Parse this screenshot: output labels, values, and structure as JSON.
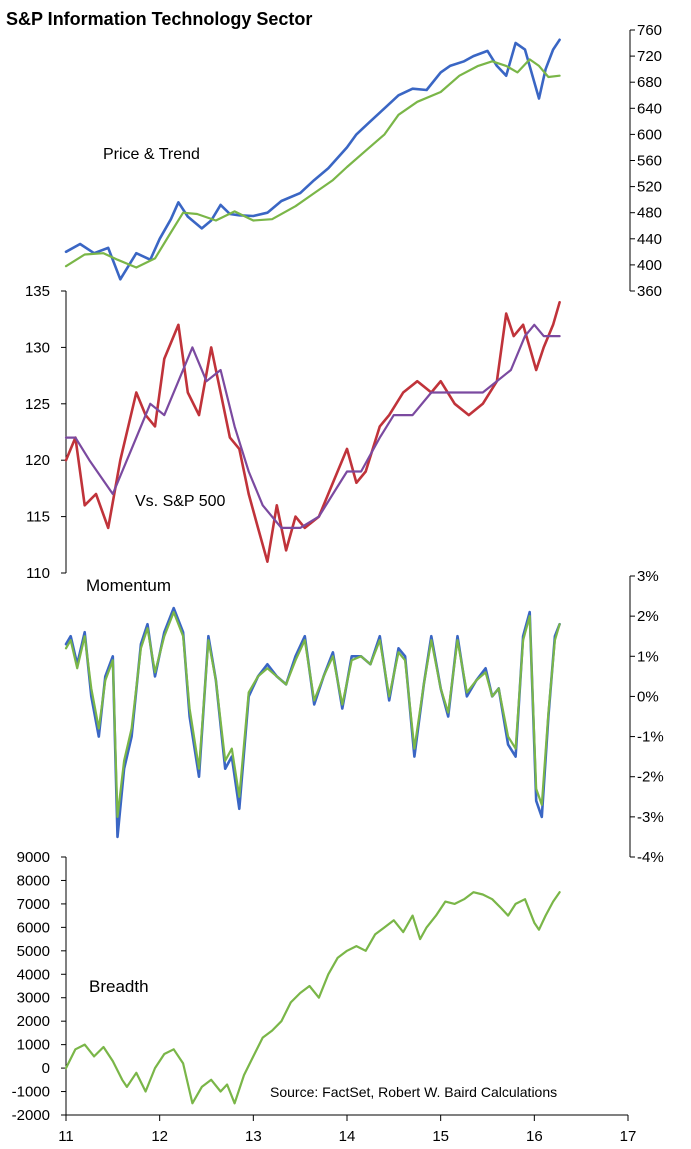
{
  "chart_data": {
    "type": "line",
    "title": "S&P Information Technology Sector",
    "source": "Source: FactSet, Robert W. Baird Calculations",
    "x_axis": {
      "ticks": [
        "11",
        "12",
        "13",
        "14",
        "15",
        "16",
        "17"
      ],
      "range": [
        2011,
        2017
      ]
    },
    "panels": [
      {
        "name": "Price & Trend",
        "axis_side": "right",
        "ylim": [
          360,
          760
        ],
        "y_ticks": [
          "760",
          "720",
          "680",
          "640",
          "600",
          "560",
          "520",
          "480",
          "440",
          "400",
          "360"
        ],
        "series": [
          {
            "color": "#3a66c4",
            "x": [
              2011.0,
              2011.15,
              2011.3,
              2011.45,
              2011.58,
              2011.75,
              2011.9,
              2012.0,
              2012.12,
              2012.2,
              2012.3,
              2012.45,
              2012.55,
              2012.65,
              2012.75,
              2012.85,
              2013.0,
              2013.15,
              2013.3,
              2013.5,
              2013.65,
              2013.8,
              2014.0,
              2014.1,
              2014.25,
              2014.4,
              2014.55,
              2014.7,
              2014.85,
              2015.0,
              2015.1,
              2015.25,
              2015.35,
              2015.5,
              2015.6,
              2015.7,
              2015.8,
              2015.9,
              2016.0,
              2016.05,
              2016.12,
              2016.2,
              2016.27
            ],
            "values": [
              420,
              432,
              418,
              426,
              378,
              418,
              408,
              440,
              470,
              496,
              474,
              456,
              468,
              492,
              478,
              476,
              475,
              480,
              498,
              510,
              530,
              548,
              580,
              600,
              620,
              640,
              660,
              670,
              668,
              695,
              705,
              712,
              720,
              728,
              705,
              690,
              740,
              730,
              680,
              655,
              700,
              730,
              745
            ]
          },
          {
            "color": "#7ab648",
            "x": [
              2011.0,
              2011.2,
              2011.4,
              2011.55,
              2011.75,
              2011.95,
              2012.1,
              2012.25,
              2012.4,
              2012.6,
              2012.8,
              2013.0,
              2013.2,
              2013.45,
              2013.65,
              2013.85,
              2014.0,
              2014.2,
              2014.4,
              2014.55,
              2014.75,
              2015.0,
              2015.2,
              2015.4,
              2015.55,
              2015.7,
              2015.82,
              2015.95,
              2016.05,
              2016.15,
              2016.27
            ],
            "values": [
              398,
              416,
              418,
              408,
              396,
              410,
              445,
              480,
              478,
              468,
              482,
              468,
              470,
              490,
              510,
              530,
              550,
              575,
              600,
              630,
              650,
              665,
              690,
              705,
              712,
              705,
              695,
              715,
              705,
              688,
              690
            ]
          }
        ]
      },
      {
        "name": "Vs. S&P 500",
        "axis_side": "left",
        "ylim": [
          110,
          135
        ],
        "y_ticks": [
          "135",
          "130",
          "125",
          "120",
          "115",
          "110"
        ],
        "series": [
          {
            "color": "#c0333a",
            "x": [
              2011.0,
              2011.1,
              2011.2,
              2011.32,
              2011.45,
              2011.58,
              2011.75,
              2011.85,
              2011.95,
              2012.05,
              2012.2,
              2012.3,
              2012.42,
              2012.55,
              2012.65,
              2012.75,
              2012.85,
              2012.95,
              2013.05,
              2013.15,
              2013.25,
              2013.35,
              2013.45,
              2013.55,
              2013.7,
              2013.85,
              2014.0,
              2014.1,
              2014.2,
              2014.35,
              2014.45,
              2014.6,
              2014.75,
              2014.9,
              2015.0,
              2015.15,
              2015.3,
              2015.45,
              2015.6,
              2015.7,
              2015.78,
              2015.88,
              2015.95,
              2016.02,
              2016.1,
              2016.2,
              2016.27
            ],
            "values": [
              120,
              122,
              116,
              117,
              114,
              120,
              126,
              124,
              123,
              129,
              132,
              126,
              124,
              130,
              126,
              122,
              121,
              117,
              114,
              111,
              116,
              112,
              115,
              114,
              115,
              118,
              121,
              118,
              119,
              123,
              124,
              126,
              127,
              126,
              127,
              125,
              124,
              125,
              127,
              133,
              131,
              132,
              130,
              128,
              130,
              132,
              134
            ]
          },
          {
            "color": "#7b4aa0",
            "x": [
              2011.0,
              2011.1,
              2011.25,
              2011.5,
              2011.7,
              2011.9,
              2012.05,
              2012.2,
              2012.35,
              2012.5,
              2012.65,
              2012.8,
              2012.95,
              2013.1,
              2013.3,
              2013.5,
              2013.7,
              2013.85,
              2014.0,
              2014.15,
              2014.35,
              2014.5,
              2014.7,
              2014.9,
              2015.05,
              2015.25,
              2015.45,
              2015.6,
              2015.75,
              2015.9,
              2016.0,
              2016.1,
              2016.2,
              2016.27
            ],
            "values": [
              122,
              122,
              120,
              117,
              121,
              125,
              124,
              127,
              130,
              127,
              128,
              123,
              119,
              116,
              114,
              114,
              115,
              117,
              119,
              119,
              122,
              124,
              124,
              126,
              126,
              126,
              126,
              127,
              128,
              131,
              132,
              131,
              131,
              131
            ]
          }
        ]
      },
      {
        "name": "Momentum",
        "axis_side": "right",
        "ylim": [
          -4,
          3
        ],
        "y_ticks": [
          "3%",
          "2%",
          "1%",
          "0%",
          "-1%",
          "-2%",
          "-3%",
          "-4%"
        ],
        "series": [
          {
            "color": "#3a66c4",
            "x": [
              2011.0,
              2011.05,
              2011.12,
              2011.2,
              2011.27,
              2011.35,
              2011.42,
              2011.5,
              2011.55,
              2011.62,
              2011.7,
              2011.8,
              2011.87,
              2011.95,
              2012.05,
              2012.15,
              2012.25,
              2012.32,
              2012.42,
              2012.52,
              2012.6,
              2012.7,
              2012.77,
              2012.85,
              2012.95,
              2013.05,
              2013.15,
              2013.25,
              2013.35,
              2013.45,
              2013.55,
              2013.65,
              2013.75,
              2013.85,
              2013.95,
              2014.05,
              2014.15,
              2014.25,
              2014.35,
              2014.45,
              2014.55,
              2014.62,
              2014.72,
              2014.82,
              2014.9,
              2015.0,
              2015.08,
              2015.18,
              2015.28,
              2015.38,
              2015.48,
              2015.55,
              2015.62,
              2015.72,
              2015.8,
              2015.88,
              2015.95,
              2016.02,
              2016.08,
              2016.15,
              2016.22,
              2016.27
            ],
            "values": [
              1.3,
              1.5,
              0.8,
              1.6,
              0.0,
              -1.0,
              0.5,
              1.0,
              -3.5,
              -1.8,
              -1.0,
              1.3,
              1.8,
              0.5,
              1.6,
              2.2,
              1.6,
              -0.5,
              -2.0,
              1.5,
              0.4,
              -1.8,
              -1.5,
              -2.8,
              0.0,
              0.5,
              0.8,
              0.5,
              0.3,
              1.0,
              1.5,
              -0.2,
              0.5,
              1.1,
              -0.3,
              1.0,
              1.0,
              0.8,
              1.5,
              -0.1,
              1.2,
              1.0,
              -1.5,
              0.3,
              1.5,
              0.2,
              -0.5,
              1.5,
              0.0,
              0.4,
              0.7,
              0.0,
              0.2,
              -1.2,
              -1.5,
              1.5,
              2.1,
              -2.6,
              -3.0,
              -0.5,
              1.5,
              1.8
            ]
          },
          {
            "color": "#7ab648",
            "x": [
              2011.0,
              2011.05,
              2011.12,
              2011.2,
              2011.27,
              2011.35,
              2011.42,
              2011.5,
              2011.55,
              2011.62,
              2011.7,
              2011.8,
              2011.87,
              2011.95,
              2012.05,
              2012.15,
              2012.25,
              2012.32,
              2012.42,
              2012.52,
              2012.6,
              2012.7,
              2012.77,
              2012.85,
              2012.95,
              2013.05,
              2013.15,
              2013.25,
              2013.35,
              2013.45,
              2013.55,
              2013.65,
              2013.75,
              2013.85,
              2013.95,
              2014.05,
              2014.15,
              2014.25,
              2014.35,
              2014.45,
              2014.55,
              2014.62,
              2014.72,
              2014.82,
              2014.9,
              2015.0,
              2015.08,
              2015.18,
              2015.28,
              2015.38,
              2015.48,
              2015.55,
              2015.62,
              2015.72,
              2015.8,
              2015.88,
              2015.95,
              2016.02,
              2016.08,
              2016.15,
              2016.22,
              2016.27
            ],
            "values": [
              1.2,
              1.4,
              0.7,
              1.5,
              0.2,
              -0.8,
              0.4,
              0.9,
              -3.0,
              -1.6,
              -0.8,
              1.2,
              1.7,
              0.6,
              1.5,
              2.1,
              1.5,
              -0.3,
              -1.8,
              1.4,
              0.4,
              -1.6,
              -1.3,
              -2.5,
              0.1,
              0.5,
              0.7,
              0.5,
              0.3,
              0.9,
              1.4,
              -0.1,
              0.5,
              1.0,
              -0.2,
              0.9,
              1.0,
              0.8,
              1.4,
              0.0,
              1.1,
              0.9,
              -1.3,
              0.3,
              1.4,
              0.2,
              -0.4,
              1.4,
              0.1,
              0.4,
              0.6,
              0.0,
              0.2,
              -1.0,
              -1.3,
              1.4,
              2.0,
              -2.3,
              -2.7,
              -0.4,
              1.4,
              1.8
            ]
          }
        ]
      },
      {
        "name": "Breadth",
        "axis_side": "left",
        "ylim": [
          -2000,
          9000
        ],
        "y_ticks": [
          "9000",
          "8000",
          "7000",
          "6000",
          "5000",
          "4000",
          "3000",
          "2000",
          "1000",
          "0",
          "-1000",
          "-2000"
        ],
        "series": [
          {
            "color": "#7ab648",
            "x": [
              2011.0,
              2011.1,
              2011.2,
              2011.3,
              2011.4,
              2011.5,
              2011.6,
              2011.65,
              2011.75,
              2011.85,
              2011.95,
              2012.05,
              2012.15,
              2012.25,
              2012.35,
              2012.45,
              2012.55,
              2012.65,
              2012.72,
              2012.8,
              2012.9,
              2013.0,
              2013.1,
              2013.2,
              2013.3,
              2013.4,
              2013.5,
              2013.6,
              2013.7,
              2013.8,
              2013.9,
              2014.0,
              2014.1,
              2014.2,
              2014.3,
              2014.4,
              2014.5,
              2014.6,
              2014.7,
              2014.78,
              2014.85,
              2014.95,
              2015.05,
              2015.15,
              2015.25,
              2015.35,
              2015.45,
              2015.55,
              2015.65,
              2015.72,
              2015.8,
              2015.9,
              2016.0,
              2016.05,
              2016.12,
              2016.2,
              2016.27
            ],
            "values": [
              0,
              800,
              1000,
              500,
              900,
              300,
              -500,
              -800,
              -200,
              -1000,
              0,
              600,
              800,
              200,
              -1500,
              -800,
              -500,
              -1000,
              -700,
              -1500,
              -300,
              500,
              1300,
              1600,
              2000,
              2800,
              3200,
              3500,
              3000,
              4000,
              4700,
              5000,
              5200,
              5000,
              5700,
              6000,
              6300,
              5800,
              6500,
              5500,
              6000,
              6500,
              7100,
              7000,
              7200,
              7500,
              7400,
              7200,
              6800,
              6500,
              7000,
              7200,
              6200,
              5900,
              6500,
              7100,
              7500
            ]
          }
        ]
      }
    ]
  }
}
